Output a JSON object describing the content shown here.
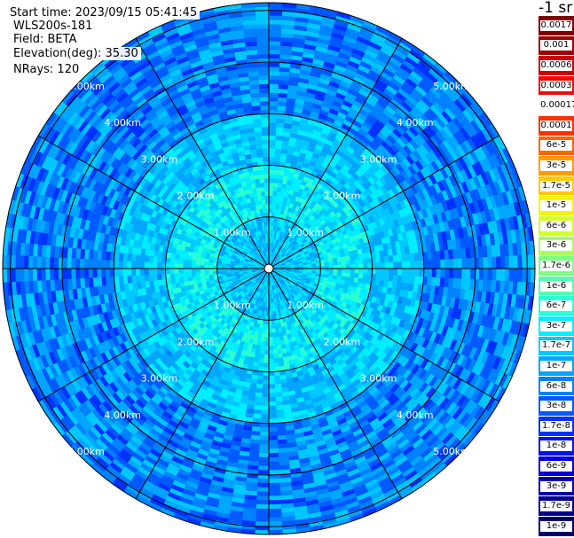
{
  "header": {
    "start_time": "Start time: 2023/09/15 05:41:45",
    "device": "WLS200s-181",
    "field": "Field: BETA",
    "elevation": "Elevation(deg): 35.30",
    "nrays": "NRays: 120"
  },
  "colorbar": {
    "unit_label": "-1 sr",
    "levels": [
      {
        "label": "0.0017",
        "color": "#7f0000"
      },
      {
        "label": "0.001",
        "color": "#a00000"
      },
      {
        "label": "0.0006",
        "color": "#cc0000"
      },
      {
        "label": "0.0003",
        "color": "#f20a00"
      },
      {
        "label": "0.00017",
        "color": "#ffffff"
      },
      {
        "label": "0.0001",
        "color": "#ff3000"
      },
      {
        "label": "6e-5",
        "color": "#ff6400"
      },
      {
        "label": "3e-5",
        "color": "#ff9a00"
      },
      {
        "label": "1.7e-5",
        "color": "#ffc800"
      },
      {
        "label": "1e-5",
        "color": "#f4f400"
      },
      {
        "label": "6e-6",
        "color": "#d2ff2a"
      },
      {
        "label": "3e-6",
        "color": "#a6ff58"
      },
      {
        "label": "1.7e-6",
        "color": "#7cff82"
      },
      {
        "label": "1e-6",
        "color": "#52ffac"
      },
      {
        "label": "6e-7",
        "color": "#2affd4"
      },
      {
        "label": "3e-7",
        "color": "#00eeff"
      },
      {
        "label": "1.7e-7",
        "color": "#00c8ff"
      },
      {
        "label": "1e-7",
        "color": "#00a6ff"
      },
      {
        "label": "6e-8",
        "color": "#0082ff"
      },
      {
        "label": "3e-8",
        "color": "#005aff"
      },
      {
        "label": "1.7e-8",
        "color": "#0032ff"
      },
      {
        "label": "1e-8",
        "color": "#0014f0"
      },
      {
        "label": "6e-9",
        "color": "#0000d6"
      },
      {
        "label": "3e-9",
        "color": "#0000b4"
      },
      {
        "label": "1.7e-9",
        "color": "#000090"
      },
      {
        "label": "1e-9",
        "color": "#00006e"
      }
    ]
  },
  "chart_data": {
    "type": "heatmap",
    "projection": "polar (PPI scan)",
    "field": "BETA",
    "unit": "sr^-1",
    "elevation_deg": 35.3,
    "n_rays": 120,
    "range_rings_km": [
      1.0,
      2.0,
      3.0,
      4.0,
      5.0
    ],
    "range_ring_labels": [
      "1.00km",
      "2.00km",
      "3.00km",
      "4.00km",
      "5.00km"
    ],
    "max_range_km": 5.15,
    "radial_lines_every_deg": 30,
    "value_distribution": [
      {
        "range_km": [
          0.0,
          1.0
        ],
        "typical_value": 1.7e-07
      },
      {
        "range_km": [
          1.0,
          2.0
        ],
        "typical_value": 3e-07
      },
      {
        "range_km": [
          2.0,
          3.0
        ],
        "typical_value": 1.7e-07
      },
      {
        "range_km": [
          3.0,
          5.15
        ],
        "typical_value": 6e-08
      }
    ]
  }
}
